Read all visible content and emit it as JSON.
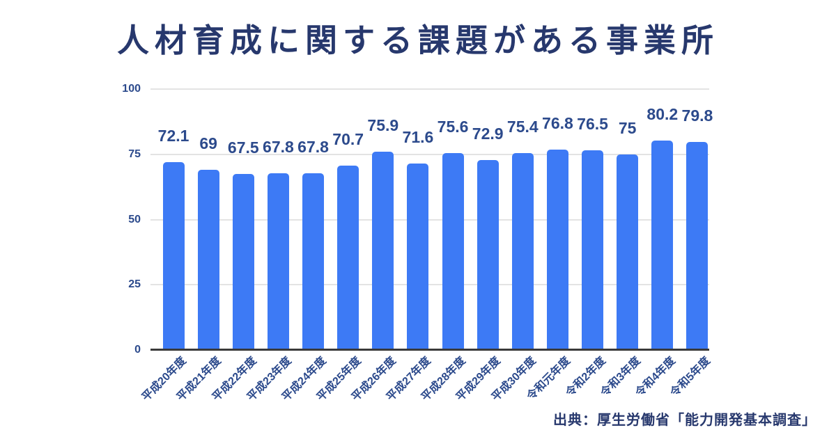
{
  "title": "人材育成に関する課題がある事業所",
  "source": "出典：厚生労働省「能力開発基本調査」",
  "colors": {
    "background": "#FFFFFF",
    "bar": "#3D7AF5",
    "title_text": "#27386D",
    "label_text": "#2C4A8C",
    "gridline": "#E3E3E3",
    "axis_line": "#3A3A3A"
  },
  "chart_data": {
    "type": "bar",
    "title": "人材育成に関する課題がある事業所",
    "categories": [
      "平成20年度",
      "平成21年度",
      "平成22年度",
      "平成23年度",
      "平成24年度",
      "平成25年度",
      "平成26年度",
      "平成27年度",
      "平成28年度",
      "平成29年度",
      "平成30年度",
      "令和元年度",
      "令和2年度",
      "令和3年度",
      "令和4年度",
      "令和5年度"
    ],
    "values": [
      72.1,
      69,
      67.5,
      67.8,
      67.8,
      70.7,
      75.9,
      71.6,
      75.6,
      72.9,
      75.4,
      76.8,
      76.5,
      75,
      80.2,
      79.8
    ],
    "value_labels": [
      "72.1",
      "69",
      "67.5",
      "67.8",
      "67.8",
      "70.7",
      "75.9",
      "71.6",
      "75.6",
      "72.9",
      "75.4",
      "76.8",
      "76.5",
      "75",
      "80.2",
      "79.8"
    ],
    "xlabel": "",
    "ylabel": "",
    "ylim": [
      0,
      100
    ],
    "yticks": [
      0,
      25,
      50,
      75,
      100
    ],
    "grid": true,
    "legend": false,
    "bar_data_labels": true,
    "x_tick_rotation_deg": -45,
    "source": "出典：厚生労働省「能力開発基本調査」"
  }
}
